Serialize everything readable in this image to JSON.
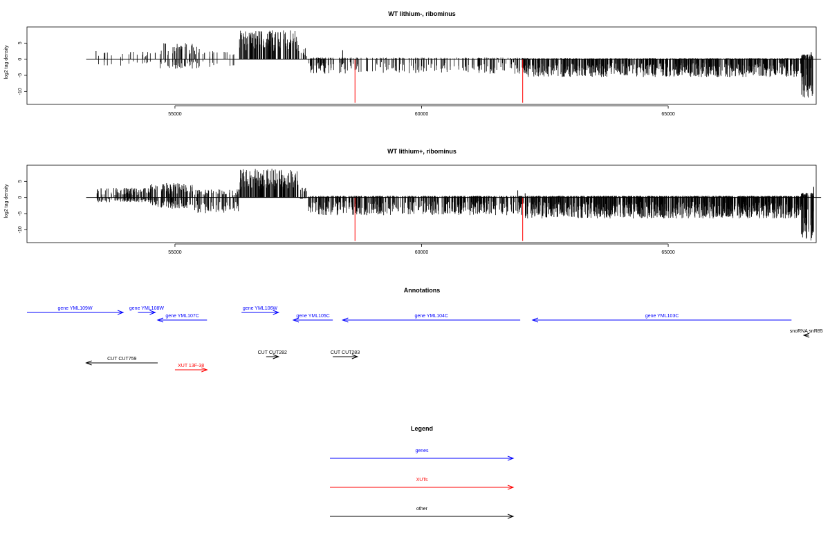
{
  "chart_data": [
    {
      "type": "bar",
      "title": "WT lithium-, ribominus",
      "xlabel": "",
      "ylabel": "log2 tag density",
      "xlim": [
        52000,
        68000
      ],
      "ylim": [
        -14,
        10
      ],
      "x_ticks": [
        55000,
        60000,
        65000
      ],
      "y_ticks": [
        -10,
        -5,
        0,
        5
      ],
      "x_tick_labels": [
        "55000",
        "60000",
        "65000"
      ],
      "y_tick_labels": [
        "-10",
        "-5",
        "0",
        "5"
      ],
      "baseline": [
        53200,
        68100
      ],
      "red_markers": {
        "x": [
          58650,
          62050
        ],
        "y_from": 0,
        "y_to": -13.5
      },
      "positive_peaks": [
        {
          "x": 53400,
          "value": 2.5
        },
        {
          "x": 53580,
          "value": 2.0
        },
        {
          "x": 54100,
          "value": 2.2
        },
        {
          "x": 54350,
          "value": 2.3
        },
        {
          "x": 54600,
          "value": 2.0
        },
        {
          "x": 55400,
          "value": 2.6
        },
        {
          "x": 55600,
          "value": 2.0
        },
        {
          "x": 58400,
          "value": 2.8
        },
        {
          "x": 67900,
          "value": 2.2
        }
      ],
      "segments": [
        {
          "from": 53400,
          "to": 54700,
          "density": 0.012,
          "pos": 2.3,
          "neg": 2.0
        },
        {
          "from": 54700,
          "to": 55500,
          "density": 0.06,
          "pos": 5.0,
          "neg": 3.0
        },
        {
          "from": 55500,
          "to": 56200,
          "density": 0.02,
          "pos": 2.8,
          "neg": 2.5
        },
        {
          "from": 56300,
          "to": 57500,
          "density": 0.14,
          "pos": 9.0,
          "neg": 0.0
        },
        {
          "from": 57500,
          "to": 57700,
          "density": 0.05,
          "pos": 3.5,
          "neg": 0.0
        },
        {
          "from": 57700,
          "to": 58400,
          "density": 0.08,
          "pos": 0.5,
          "neg": 4.5
        },
        {
          "from": 58400,
          "to": 62100,
          "density": 0.05,
          "pos": 0.5,
          "neg": 4.5
        },
        {
          "from": 62100,
          "to": 67700,
          "density": 0.16,
          "pos": 0.3,
          "neg": 5.5
        },
        {
          "from": 67700,
          "to": 67950,
          "density": 0.2,
          "pos": 1.5,
          "neg": 12.5
        }
      ]
    },
    {
      "type": "bar",
      "title": "WT lithium+, ribominus",
      "xlabel": "",
      "ylabel": "log2 tag density",
      "xlim": [
        52000,
        68000
      ],
      "ylim": [
        -14,
        10
      ],
      "x_ticks": [
        55000,
        60000,
        65000
      ],
      "y_ticks": [
        -10,
        -5,
        0,
        5
      ],
      "x_tick_labels": [
        "55000",
        "60000",
        "65000"
      ],
      "y_tick_labels": [
        "-10",
        "-5",
        "0",
        "5"
      ],
      "baseline": [
        53200,
        68100
      ],
      "red_markers": {
        "x": [
          58650,
          62050
        ],
        "y_from": 0,
        "y_to": -13.5
      },
      "positive_peaks": [
        {
          "x": 61950,
          "value": 2.2
        },
        {
          "x": 62100,
          "value": 1.3
        },
        {
          "x": 67950,
          "value": 3.3
        }
      ],
      "segments": [
        {
          "from": 53400,
          "to": 54500,
          "density": 0.1,
          "pos": 3.0,
          "neg": 1.5
        },
        {
          "from": 54500,
          "to": 55400,
          "density": 0.12,
          "pos": 4.5,
          "neg": 3.5
        },
        {
          "from": 55400,
          "to": 56300,
          "density": 0.08,
          "pos": 2.5,
          "neg": 5.0
        },
        {
          "from": 56300,
          "to": 57500,
          "density": 0.16,
          "pos": 9.0,
          "neg": 0.0
        },
        {
          "from": 57500,
          "to": 57700,
          "density": 0.06,
          "pos": 3.0,
          "neg": 0.5
        },
        {
          "from": 57700,
          "to": 62100,
          "density": 0.12,
          "pos": 0.5,
          "neg": 5.5
        },
        {
          "from": 62100,
          "to": 67700,
          "density": 0.2,
          "pos": 0.5,
          "neg": 6.5
        },
        {
          "from": 67700,
          "to": 67950,
          "density": 0.2,
          "pos": 1.5,
          "neg": 13.5
        }
      ]
    }
  ],
  "annotations": {
    "title": "Annotations",
    "features": [
      {
        "label": "gene YML109W",
        "category": "genes",
        "strand": "+",
        "start": 52000,
        "end": 53950,
        "row": 0
      },
      {
        "label": "gene YML108W",
        "category": "genes",
        "strand": "+",
        "start": 54250,
        "end": 54600,
        "row": 0
      },
      {
        "label": "gene YML107C",
        "category": "genes",
        "strand": "-",
        "start": 54650,
        "end": 55650,
        "row": 1
      },
      {
        "label": "gene YML106W",
        "category": "genes",
        "strand": "+",
        "start": 56350,
        "end": 57100,
        "row": 0
      },
      {
        "label": "gene YML105C",
        "category": "genes",
        "strand": "-",
        "start": 57400,
        "end": 58200,
        "row": 1
      },
      {
        "label": "gene YML104C",
        "category": "genes",
        "strand": "-",
        "start": 58400,
        "end": 62000,
        "row": 1
      },
      {
        "label": "gene YML103C",
        "category": "genes",
        "strand": "-",
        "start": 62250,
        "end": 67500,
        "row": 1
      },
      {
        "label": "snoRNA snR85",
        "category": "other",
        "strand": "-",
        "start": 67750,
        "end": 67850,
        "row": 2
      },
      {
        "label": "CUT CUT759",
        "category": "other",
        "strand": "-",
        "start": 53200,
        "end": 54650,
        "row": 4
      },
      {
        "label": "XUT 13F-38",
        "category": "XUTs",
        "strand": "+",
        "start": 55000,
        "end": 55650,
        "row": 5
      },
      {
        "label": "CUT CUT282",
        "category": "other",
        "strand": "+",
        "start": 56850,
        "end": 57100,
        "row": 3
      },
      {
        "label": "CUT CUT283",
        "category": "other",
        "strand": "+",
        "start": 58200,
        "end": 58700,
        "row": 3
      }
    ]
  },
  "legend": {
    "title": "Legend",
    "items": [
      {
        "label": "genes",
        "color": "#0000ff"
      },
      {
        "label": "XUTs",
        "color": "#ff0000"
      },
      {
        "label": "other",
        "color": "#000000"
      }
    ]
  },
  "colors": {
    "genes": "#0000ff",
    "XUTs": "#ff0000",
    "other": "#000000",
    "marker": "#ff0000",
    "bars": "#000000"
  }
}
